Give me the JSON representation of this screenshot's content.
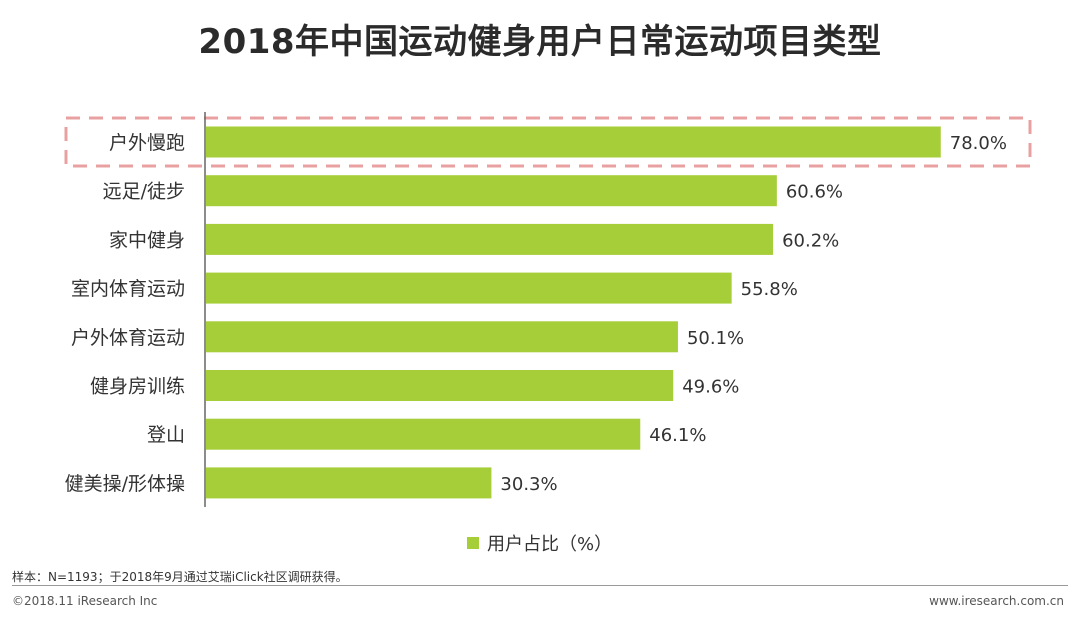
{
  "title": "2018年中国运动健身用户日常运动项目类型",
  "legend": {
    "label": "用户占比（%）"
  },
  "colors": {
    "bar": "#a6ce39",
    "highlight": "#e8a0a0",
    "axis": "#666666"
  },
  "chart_data": {
    "type": "bar",
    "orientation": "horizontal",
    "title": "2018年中国运动健身用户日常运动项目类型",
    "categories": [
      "户外慢跑",
      "远足/徒步",
      "家中健身",
      "室内体育运动",
      "户外体育运动",
      "健身房训练",
      "登山",
      "健美操/形体操"
    ],
    "series": [
      {
        "name": "用户占比（%）",
        "values": [
          78.0,
          60.6,
          60.2,
          55.8,
          50.1,
          49.6,
          46.1,
          30.3
        ],
        "labels": [
          "78.0%",
          "60.6%",
          "60.2%",
          "55.8%",
          "50.1%",
          "49.6%",
          "46.1%",
          "30.3%"
        ]
      }
    ],
    "highlighted_category": "户外慢跑",
    "xlim": [
      0,
      100
    ],
    "grid": false,
    "legend_position": "bottom"
  },
  "footer": {
    "note": "样本：N=1193；于2018年9月通过艾瑞iClick社区调研获得。",
    "copyright": "©2018.11 iResearch Inc",
    "website": "www.iresearch.com.cn"
  }
}
